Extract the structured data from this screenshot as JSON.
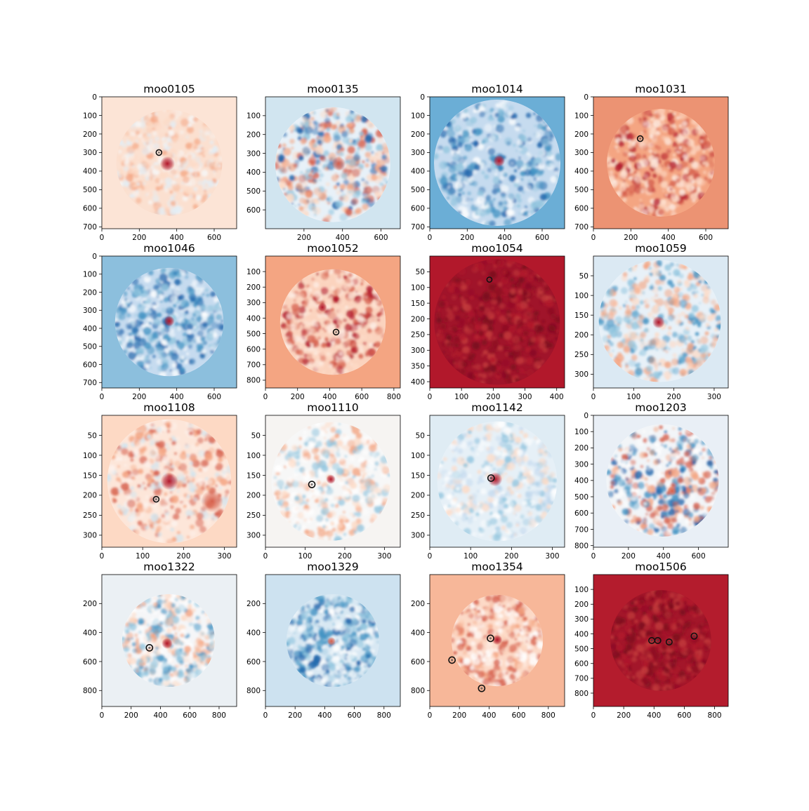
{
  "chart_data": [
    {
      "type": "heatmap",
      "title": "moo0105",
      "xticks": [
        0,
        200,
        400,
        600
      ],
      "yticks": [
        0,
        100,
        200,
        300,
        400,
        500,
        600,
        700
      ],
      "xlim": [
        0,
        720
      ],
      "ylim": [
        0,
        710
      ],
      "background": "#fce4d6",
      "disk_color": "#fbe0d0",
      "texture": "mixed-red",
      "noise_colors": [
        "#f4a582",
        "#fddbc7",
        "#e2eef6",
        "#f7f7f7"
      ],
      "blobs": [
        {
          "x": 350,
          "y": 360,
          "r": 40,
          "color": "#b2182b"
        }
      ],
      "markers": [
        {
          "x": 305,
          "y": 300,
          "r": 15
        }
      ],
      "cx": 360,
      "cy": 355,
      "r": 285
    },
    {
      "type": "heatmap",
      "title": "moo0135",
      "xticks": [
        200,
        400,
        600
      ],
      "yticks": [
        100,
        200,
        300,
        400,
        500,
        600
      ],
      "xlim": [
        0,
        700
      ],
      "ylim": [
        0,
        700
      ],
      "background": "#d1e5f0",
      "disk_color": "#e8f1f8",
      "texture": "mixed-blue",
      "noise_colors": [
        "#2166ac",
        "#92c5de",
        "#f4a582",
        "#d6604d",
        "#fddbc7"
      ],
      "blobs": [
        {
          "x": 380,
          "y": 355,
          "r": 38,
          "color": "#d6604d"
        }
      ],
      "markers": [],
      "cx": 350,
      "cy": 360,
      "r": 305
    },
    {
      "type": "heatmap",
      "title": "moo1014",
      "xticks": [
        0,
        200,
        400,
        600
      ],
      "yticks": [
        0,
        100,
        200,
        300,
        400,
        500,
        600,
        700
      ],
      "xlim": [
        0,
        720
      ],
      "ylim": [
        0,
        710
      ],
      "background": "#6baed6",
      "disk_color": "#c6dbef",
      "texture": "blue",
      "noise_colors": [
        "#2166ac",
        "#4393c3",
        "#92c5de",
        "#ffffff"
      ],
      "blobs": [
        {
          "x": 370,
          "y": 345,
          "r": 32,
          "color": "#b2182b"
        }
      ],
      "markers": [],
      "cx": 360,
      "cy": 355,
      "r": 340
    },
    {
      "type": "heatmap",
      "title": "moo1031",
      "xticks": [
        0,
        200,
        400,
        600
      ],
      "yticks": [
        0,
        100,
        200,
        300,
        400,
        500,
        600,
        700
      ],
      "xlim": [
        0,
        720
      ],
      "ylim": [
        0,
        710
      ],
      "background": "#ec9373",
      "disk_color": "#f4a582",
      "texture": "red",
      "noise_colors": [
        "#b2182b",
        "#d6604d",
        "#fddbc7",
        "#fcebe2"
      ],
      "blobs": [],
      "markers": [
        {
          "x": 250,
          "y": 225,
          "r": 15
        }
      ],
      "cx": 360,
      "cy": 355,
      "r": 290
    },
    {
      "type": "heatmap",
      "title": "moo1046",
      "xticks": [
        0,
        200,
        400,
        600
      ],
      "yticks": [
        0,
        100,
        200,
        300,
        400,
        500,
        600,
        700
      ],
      "xlim": [
        0,
        720
      ],
      "ylim": [
        0,
        730
      ],
      "background": "#8cbfdd",
      "disk_color": "#c6dbef",
      "texture": "blue",
      "noise_colors": [
        "#2166ac",
        "#4393c3",
        "#92c5de",
        "#ffffff"
      ],
      "blobs": [
        {
          "x": 360,
          "y": 360,
          "r": 30,
          "color": "#b2182b"
        }
      ],
      "markers": [],
      "cx": 360,
      "cy": 365,
      "r": 300
    },
    {
      "type": "heatmap",
      "title": "moo1052",
      "xticks": [
        0,
        200,
        400,
        600,
        800
      ],
      "yticks": [
        100,
        200,
        300,
        400,
        500,
        600,
        700,
        800
      ],
      "xlim": [
        0,
        840
      ],
      "ylim": [
        0,
        850
      ],
      "background": "#f4a582",
      "disk_color": "#fbd3be",
      "texture": "red",
      "noise_colors": [
        "#b2182b",
        "#d6604d",
        "#fddbc7",
        "#fdeee6"
      ],
      "blobs": [
        {
          "x": 355,
          "y": 330,
          "r": 30,
          "color": "#b2182b"
        }
      ],
      "markers": [
        {
          "x": 440,
          "y": 490,
          "r": 18
        }
      ],
      "cx": 420,
      "cy": 425,
      "r": 340
    },
    {
      "type": "heatmap",
      "title": "moo1054",
      "xticks": [
        0,
        100,
        200,
        300,
        400
      ],
      "yticks": [
        50,
        100,
        150,
        200,
        250,
        300,
        350,
        400
      ],
      "xlim": [
        0,
        425
      ],
      "ylim": [
        0,
        420
      ],
      "background": "#b2182b",
      "disk_color": "#a0142a",
      "texture": "darkred",
      "noise_colors": [
        "#8e0d22",
        "#b2182b",
        "#c43c3c",
        "#7a0b1d"
      ],
      "blobs": [],
      "markers": [
        {
          "x": 188,
          "y": 75,
          "r": 8
        }
      ],
      "cx": 212,
      "cy": 210,
      "r": 200
    },
    {
      "type": "heatmap",
      "title": "moo1059",
      "xticks": [
        0,
        100,
        200,
        300
      ],
      "yticks": [
        50,
        100,
        150,
        200,
        250,
        300
      ],
      "xlim": [
        0,
        335
      ],
      "ylim": [
        0,
        335
      ],
      "background": "#dbe9f3",
      "disk_color": "#e8f1f8",
      "texture": "mixed-blue",
      "noise_colors": [
        "#4393c3",
        "#92c5de",
        "#f4a582",
        "#fddbc7"
      ],
      "blobs": [
        {
          "x": 162,
          "y": 168,
          "r": 16,
          "color": "#b2182b"
        }
      ],
      "markers": [],
      "cx": 165,
      "cy": 165,
      "r": 155
    },
    {
      "type": "heatmap",
      "title": "moo1108",
      "xticks": [
        0,
        100,
        200,
        300
      ],
      "yticks": [
        50,
        100,
        150,
        200,
        250,
        300
      ],
      "xlim": [
        0,
        330
      ],
      "ylim": [
        0,
        330
      ],
      "background": "#fdd9c4",
      "disk_color": "#fde6d9",
      "texture": "mixed-red",
      "noise_colors": [
        "#d6604d",
        "#f4a582",
        "#d1e5f0",
        "#fdf3ee"
      ],
      "blobs": [
        {
          "x": 165,
          "y": 165,
          "r": 22,
          "color": "#b2182b"
        },
        {
          "x": 270,
          "y": 215,
          "r": 28,
          "color": "#d6604d"
        }
      ],
      "markers": [
        {
          "x": 133,
          "y": 210,
          "r": 7
        }
      ],
      "cx": 165,
      "cy": 165,
      "r": 155
    },
    {
      "type": "heatmap",
      "title": "moo1110",
      "xticks": [
        0,
        100,
        200,
        300
      ],
      "yticks": [
        50,
        100,
        150,
        200,
        250,
        300
      ],
      "xlim": [
        0,
        340
      ],
      "ylim": [
        0,
        330
      ],
      "background": "#f6f4f2",
      "disk_color": "#f7f7f7",
      "texture": "mixed-light",
      "noise_colors": [
        "#f4a582",
        "#92c5de",
        "#ffffff",
        "#fddbc7"
      ],
      "blobs": [
        {
          "x": 165,
          "y": 160,
          "r": 12,
          "color": "#b2182b"
        }
      ],
      "markers": [
        {
          "x": 117,
          "y": 173,
          "r": 8
        }
      ],
      "cx": 165,
      "cy": 165,
      "r": 150
    },
    {
      "type": "heatmap",
      "title": "moo1142",
      "xticks": [
        0,
        100,
        200,
        300
      ],
      "yticks": [
        50,
        100,
        150,
        200,
        250,
        300
      ],
      "xlim": [
        0,
        330
      ],
      "ylim": [
        0,
        330
      ],
      "background": "#dfecf4",
      "disk_color": "#e6f0f7",
      "texture": "blue-light",
      "noise_colors": [
        "#92c5de",
        "#c6dbef",
        "#ffffff",
        "#fddbc7"
      ],
      "blobs": [
        {
          "x": 160,
          "y": 160,
          "r": 18,
          "color": "#b2182b"
        }
      ],
      "markers": [
        {
          "x": 150,
          "y": 157,
          "r": 8
        }
      ],
      "cx": 165,
      "cy": 165,
      "r": 150
    },
    {
      "type": "heatmap",
      "title": "moo1203",
      "xticks": [
        0,
        200,
        400,
        600
      ],
      "yticks": [
        0,
        100,
        200,
        300,
        400,
        500,
        600,
        700,
        800
      ],
      "xlim": [
        0,
        770
      ],
      "ylim": [
        0,
        810
      ],
      "background": "#e9eff6",
      "disk_color": "#f2f5f8",
      "texture": "mixed-blue",
      "noise_colors": [
        "#2166ac",
        "#4393c3",
        "#d6604d",
        "#f4a582",
        "#ffffff"
      ],
      "blobs": [
        {
          "x": 450,
          "y": 465,
          "r": 30,
          "color": "#d6604d"
        }
      ],
      "markers": [],
      "cx": 395,
      "cy": 400,
      "r": 345
    },
    {
      "type": "heatmap",
      "title": "moo1322",
      "xticks": [
        0,
        200,
        400,
        600,
        800
      ],
      "yticks": [
        200,
        400,
        600,
        800
      ],
      "xlim": [
        0,
        920
      ],
      "ylim": [
        0,
        910
      ],
      "background": "#ebf0f4",
      "disk_color": "#f5f6f8",
      "texture": "mixed-light",
      "noise_colors": [
        "#92c5de",
        "#4393c3",
        "#f4a582",
        "#fddbc7",
        "#ffffff"
      ],
      "blobs": [
        {
          "x": 445,
          "y": 475,
          "r": 38,
          "color": "#b2182b"
        }
      ],
      "markers": [
        {
          "x": 325,
          "y": 505,
          "r": 22
        }
      ],
      "cx": 455,
      "cy": 455,
      "r": 320
    },
    {
      "type": "heatmap",
      "title": "moo1329",
      "xticks": [
        0,
        200,
        400,
        600,
        800
      ],
      "yticks": [
        200,
        400,
        600,
        800
      ],
      "xlim": [
        0,
        910
      ],
      "ylim": [
        0,
        910
      ],
      "background": "#cde2f0",
      "disk_color": "#d8e8f3",
      "texture": "blue",
      "noise_colors": [
        "#2166ac",
        "#4393c3",
        "#92c5de",
        "#ffffff"
      ],
      "blobs": [
        {
          "x": 445,
          "y": 460,
          "r": 30,
          "color": "#d6604d"
        }
      ],
      "markers": [],
      "cx": 455,
      "cy": 455,
      "r": 320
    },
    {
      "type": "heatmap",
      "title": "moo1354",
      "xticks": [
        0,
        200,
        400,
        600,
        800
      ],
      "yticks": [
        200,
        400,
        600,
        800
      ],
      "xlim": [
        0,
        910
      ],
      "ylim": [
        0,
        910
      ],
      "background": "#f7b799",
      "disk_color": "#fcd9c7",
      "texture": "red-light",
      "noise_colors": [
        "#d6604d",
        "#f4a582",
        "#fddbc7",
        "#ffffff"
      ],
      "blobs": [
        {
          "x": 455,
          "y": 450,
          "r": 35,
          "color": "#b2182b"
        }
      ],
      "markers": [
        {
          "x": 410,
          "y": 440,
          "r": 22
        },
        {
          "x": 150,
          "y": 590,
          "r": 22
        },
        {
          "x": 350,
          "y": 785,
          "r": 22
        }
      ],
      "cx": 455,
      "cy": 455,
      "r": 315
    },
    {
      "type": "heatmap",
      "title": "moo1506",
      "xticks": [
        0,
        200,
        400,
        600,
        800
      ],
      "yticks": [
        100,
        200,
        300,
        400,
        500,
        600,
        700,
        800
      ],
      "xlim": [
        0,
        890
      ],
      "ylim": [
        0,
        890
      ],
      "background": "#b41c2d",
      "disk_color": "#a3162a",
      "texture": "darkred",
      "noise_colors": [
        "#8e0d22",
        "#b2182b",
        "#c43c3c",
        "#7a0b1d"
      ],
      "blobs": [],
      "markers": [
        {
          "x": 385,
          "y": 445,
          "r": 20
        },
        {
          "x": 425,
          "y": 445,
          "r": 20
        },
        {
          "x": 500,
          "y": 455,
          "r": 20
        },
        {
          "x": 665,
          "y": 415,
          "r": 20
        }
      ],
      "cx": 445,
      "cy": 445,
      "r": 340
    }
  ]
}
